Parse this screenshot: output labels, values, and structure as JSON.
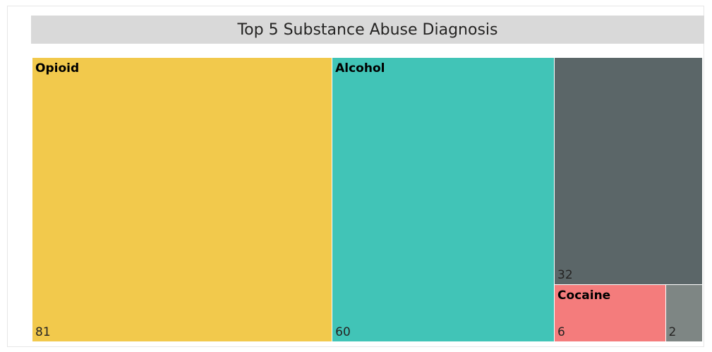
{
  "chart_data": {
    "type": "treemap",
    "title": "Top 5 Substance Abuse Diagnosis",
    "items": [
      {
        "label": "Opioid",
        "value": 81,
        "color": "#f2c94c"
      },
      {
        "label": "Alcohol",
        "value": 60,
        "color": "#41c4b7"
      },
      {
        "label": "",
        "value": 32,
        "color": "#5b6668"
      },
      {
        "label": "Cocaine",
        "value": 6,
        "color": "#f47c7c"
      },
      {
        "label": "",
        "value": 2,
        "color": "#7e8684"
      }
    ]
  }
}
